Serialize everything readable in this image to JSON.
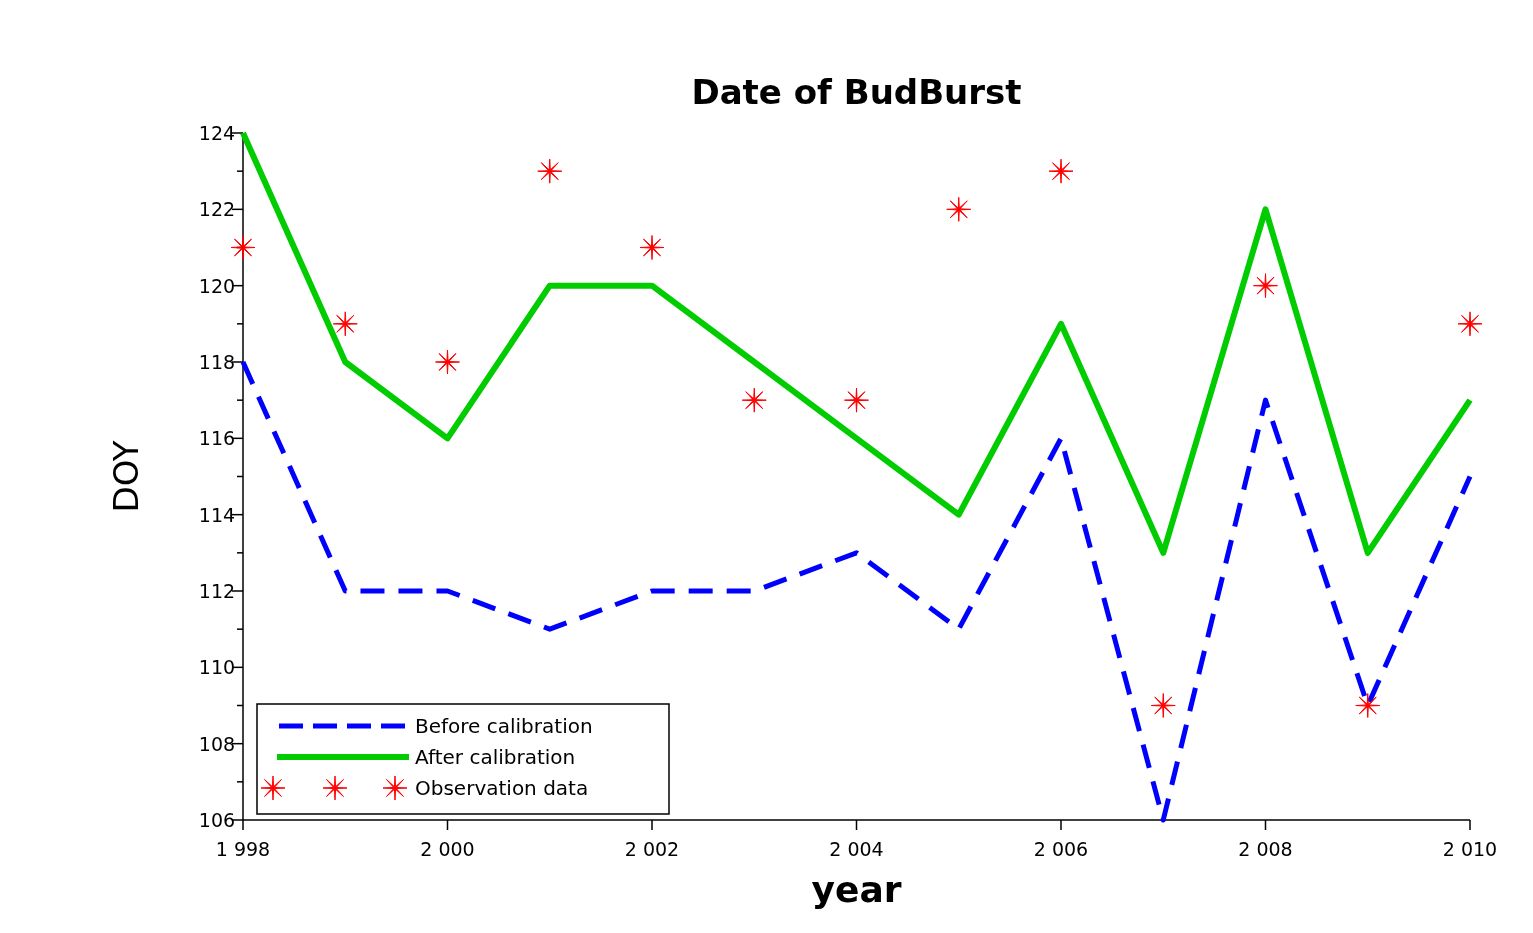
{
  "chart_data": {
    "type": "line",
    "title": "Date of BudBurst",
    "xlabel": "year",
    "ylabel": "DOY",
    "x": [
      1998,
      1999,
      2000,
      2001,
      2002,
      2003,
      2004,
      2005,
      2006,
      2007,
      2008,
      2009,
      2010
    ],
    "series": [
      {
        "name": "Before calibration",
        "type": "line",
        "color": "#0000ff",
        "line_style": "dashed",
        "marker": "none",
        "values": [
          118,
          112,
          112,
          111,
          112,
          112,
          113,
          111,
          116,
          106,
          117,
          109,
          115
        ]
      },
      {
        "name": "After calibration",
        "type": "line",
        "color": "#00cc00",
        "line_style": "solid",
        "marker": "none",
        "values": [
          124,
          118,
          116,
          120,
          120,
          118,
          116,
          114,
          119,
          113,
          122,
          113,
          117
        ]
      },
      {
        "name": "Observation data",
        "type": "scatter",
        "color": "#ff0000",
        "marker": "star",
        "values": [
          121,
          119,
          118,
          123,
          121,
          117,
          117,
          122,
          123,
          109,
          120,
          109,
          119
        ]
      }
    ],
    "xlim": [
      1998,
      2010
    ],
    "xticks": [
      {
        "value": 1998,
        "label": "1 998"
      },
      {
        "value": 2000,
        "label": "2 000"
      },
      {
        "value": 2002,
        "label": "2 002"
      },
      {
        "value": 2004,
        "label": "2 004"
      },
      {
        "value": 2006,
        "label": "2 006"
      },
      {
        "value": 2008,
        "label": "2 008"
      },
      {
        "value": 2010,
        "label": "2 010"
      }
    ],
    "ylim": [
      106,
      124
    ],
    "yticks": [
      106,
      {
        "value": 107,
        "label": null
      },
      108,
      {
        "value": 109,
        "label": null
      },
      110,
      {
        "value": 111,
        "label": null
      },
      112,
      {
        "value": 113,
        "label": null
      },
      114,
      {
        "value": 115,
        "label": null
      },
      116,
      {
        "value": 117,
        "label": null
      },
      118,
      {
        "value": 119,
        "label": null
      },
      120,
      {
        "value": 121,
        "label": null
      },
      122,
      {
        "value": 123,
        "label": null
      },
      124
    ],
    "grid": false,
    "legend": "bottom left"
  }
}
